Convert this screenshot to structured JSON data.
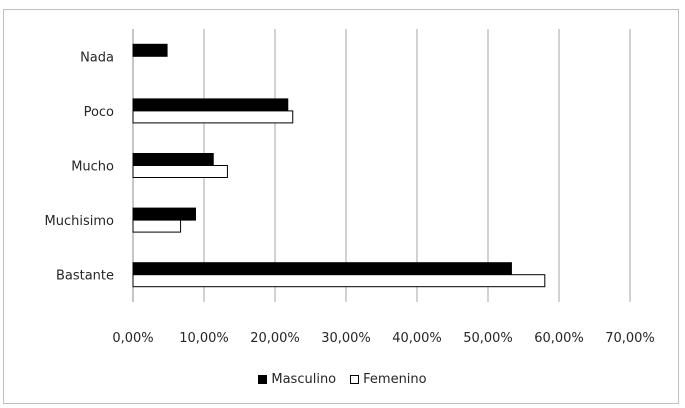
{
  "chart_data": {
    "type": "bar",
    "orientation": "horizontal",
    "categories": [
      "Nada",
      "Poco",
      "Mucho",
      "Muchisimo",
      "Bastante"
    ],
    "series": [
      {
        "name": "Masculino",
        "values": [
          4.8,
          21.8,
          11.3,
          8.8,
          53.3
        ],
        "color": "#000000"
      },
      {
        "name": "Femenino",
        "values": [
          0,
          22.5,
          13.3,
          6.7,
          58.0
        ],
        "color": "#ffffff"
      }
    ],
    "x_ticks": [
      "0,00%",
      "10,00%",
      "20,00%",
      "30,00%",
      "40,00%",
      "50,00%",
      "60,00%",
      "70,00%"
    ],
    "xlim": [
      0,
      70
    ],
    "grid": "vertical",
    "legend_position": "bottom"
  }
}
